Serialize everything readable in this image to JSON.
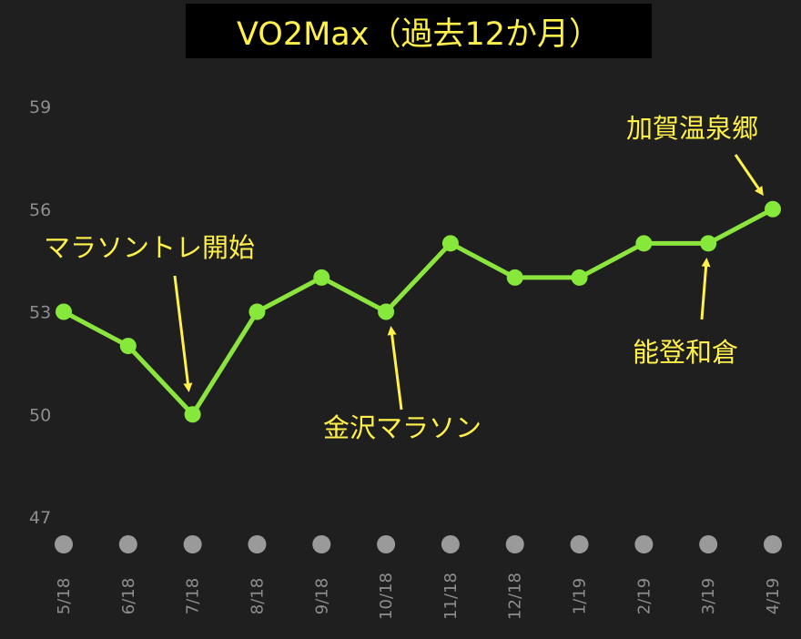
{
  "colors": {
    "background": "#1f1f1f",
    "title_bg": "#000000",
    "title_text": "#fff04a",
    "line": "#8ce43e",
    "marker": "#86e83a",
    "tick_text": "#8e8e8e",
    "x_dot": "#9a9a9a",
    "annotation": "#fff04a"
  },
  "chart_data": {
    "type": "line",
    "title": "VO2Max（過去12か月）",
    "xlabel": "",
    "ylabel": "",
    "categories": [
      "5/18",
      "6/18",
      "7/18",
      "8/18",
      "9/18",
      "10/18",
      "11/18",
      "12/18",
      "1/19",
      "2/19",
      "3/19",
      "4/19"
    ],
    "values": [
      53,
      52,
      50,
      53,
      54,
      53,
      55,
      54,
      54,
      55,
      55,
      56
    ],
    "ylim": [
      47,
      59
    ],
    "yticks": [
      47,
      50,
      53,
      56,
      59
    ],
    "grid": false,
    "legend": "none",
    "annotations": [
      {
        "text": "マラソントレ開始",
        "category": "7/18"
      },
      {
        "text": "金沢マラソン",
        "category": "10/18"
      },
      {
        "text": "能登和倉",
        "category": "3/19"
      },
      {
        "text": "加賀温泉郷",
        "category": "4/19"
      }
    ]
  }
}
